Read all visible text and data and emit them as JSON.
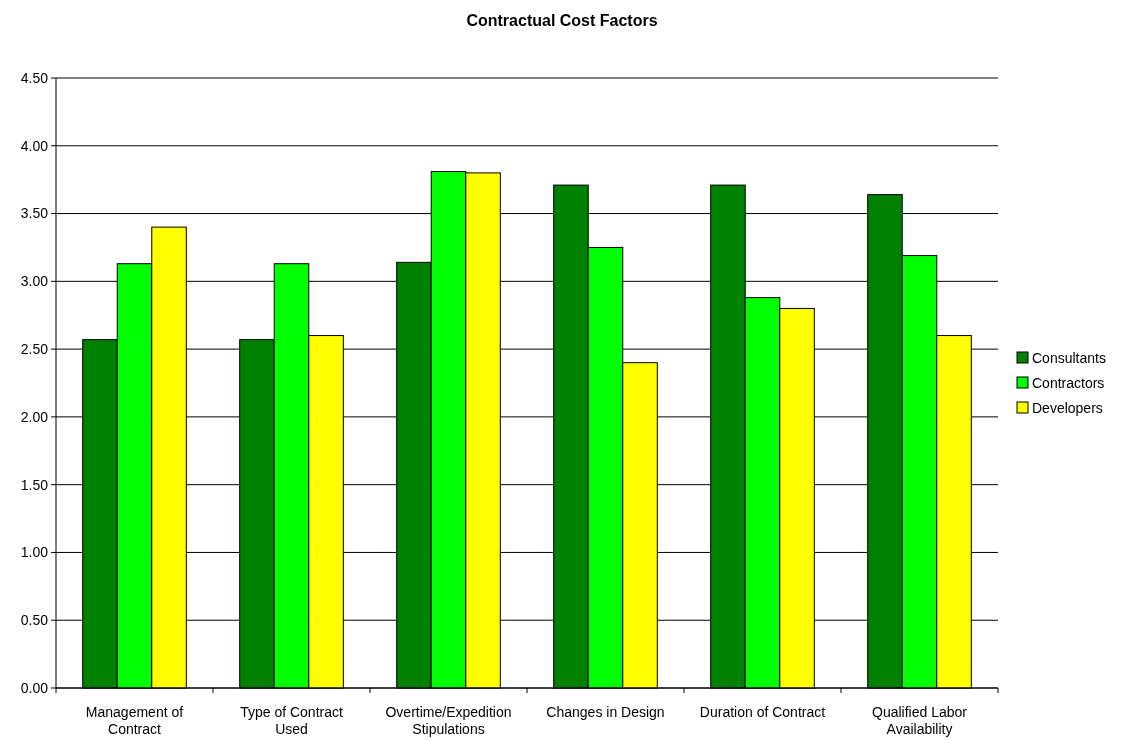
{
  "chart_data": {
    "type": "bar",
    "title": "Contractual Cost Factors",
    "categories": [
      "Management of Contract",
      "Type of Contract Used",
      "Overtime/Expedition Stipulations",
      "Changes in Design",
      "Duration of Contract",
      "Qualified Labor Availability"
    ],
    "series": [
      {
        "name": "Consultants",
        "color": "#008000",
        "values": [
          2.57,
          2.57,
          3.14,
          3.71,
          3.71,
          3.64
        ]
      },
      {
        "name": "Contractors",
        "color": "#00ff00",
        "values": [
          3.13,
          3.13,
          3.81,
          3.25,
          2.88,
          3.19
        ]
      },
      {
        "name": "Developers",
        "color": "#ffff00",
        "values": [
          3.4,
          2.6,
          3.8,
          2.4,
          2.8,
          2.6
        ]
      }
    ],
    "ylim": [
      0,
      4.5
    ],
    "yticks": [
      {
        "value": 0,
        "label": "0.00"
      },
      {
        "value": 0.5,
        "label": "0.50"
      },
      {
        "value": 1,
        "label": "1.00"
      },
      {
        "value": 1.5,
        "label": "1.50"
      },
      {
        "value": 2,
        "label": "2.00"
      },
      {
        "value": 2.5,
        "label": "2.50"
      },
      {
        "value": 3,
        "label": "3.00"
      },
      {
        "value": 3.5,
        "label": "3.50"
      },
      {
        "value": 4,
        "label": "4.00"
      },
      {
        "value": 4.5,
        "label": "4.50"
      }
    ],
    "grid": "y",
    "legend": "right"
  }
}
